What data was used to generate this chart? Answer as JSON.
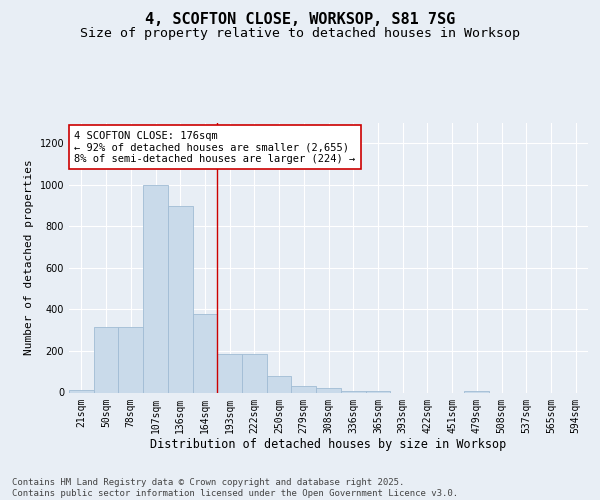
{
  "title1": "4, SCOFTON CLOSE, WORKSOP, S81 7SG",
  "title2": "Size of property relative to detached houses in Worksop",
  "xlabel": "Distribution of detached houses by size in Worksop",
  "ylabel": "Number of detached properties",
  "categories": [
    "21sqm",
    "50sqm",
    "78sqm",
    "107sqm",
    "136sqm",
    "164sqm",
    "193sqm",
    "222sqm",
    "250sqm",
    "279sqm",
    "308sqm",
    "336sqm",
    "365sqm",
    "393sqm",
    "422sqm",
    "451sqm",
    "479sqm",
    "508sqm",
    "537sqm",
    "565sqm",
    "594sqm"
  ],
  "values": [
    10,
    315,
    315,
    1000,
    900,
    380,
    185,
    185,
    80,
    30,
    20,
    5,
    5,
    0,
    0,
    0,
    5,
    0,
    0,
    0,
    0
  ],
  "bar_color": "#c9daea",
  "bar_edge_color": "#a0bcd4",
  "annotation_text": "4 SCOFTON CLOSE: 176sqm\n← 92% of detached houses are smaller (2,655)\n8% of semi-detached houses are larger (224) →",
  "vline_x": 5.5,
  "vline_color": "#cc0000",
  "annotation_box_facecolor": "#ffffff",
  "annotation_box_edgecolor": "#cc0000",
  "background_color": "#e8eef5",
  "plot_bg_color": "#e8eef5",
  "footer_text": "Contains HM Land Registry data © Crown copyright and database right 2025.\nContains public sector information licensed under the Open Government Licence v3.0.",
  "ylim": [
    0,
    1300
  ],
  "yticks": [
    0,
    200,
    400,
    600,
    800,
    1000,
    1200
  ],
  "title1_fontsize": 11,
  "title2_fontsize": 9.5,
  "tick_fontsize": 7,
  "ylabel_fontsize": 8,
  "xlabel_fontsize": 8.5,
  "annotation_fontsize": 7.5,
  "footer_fontsize": 6.5
}
